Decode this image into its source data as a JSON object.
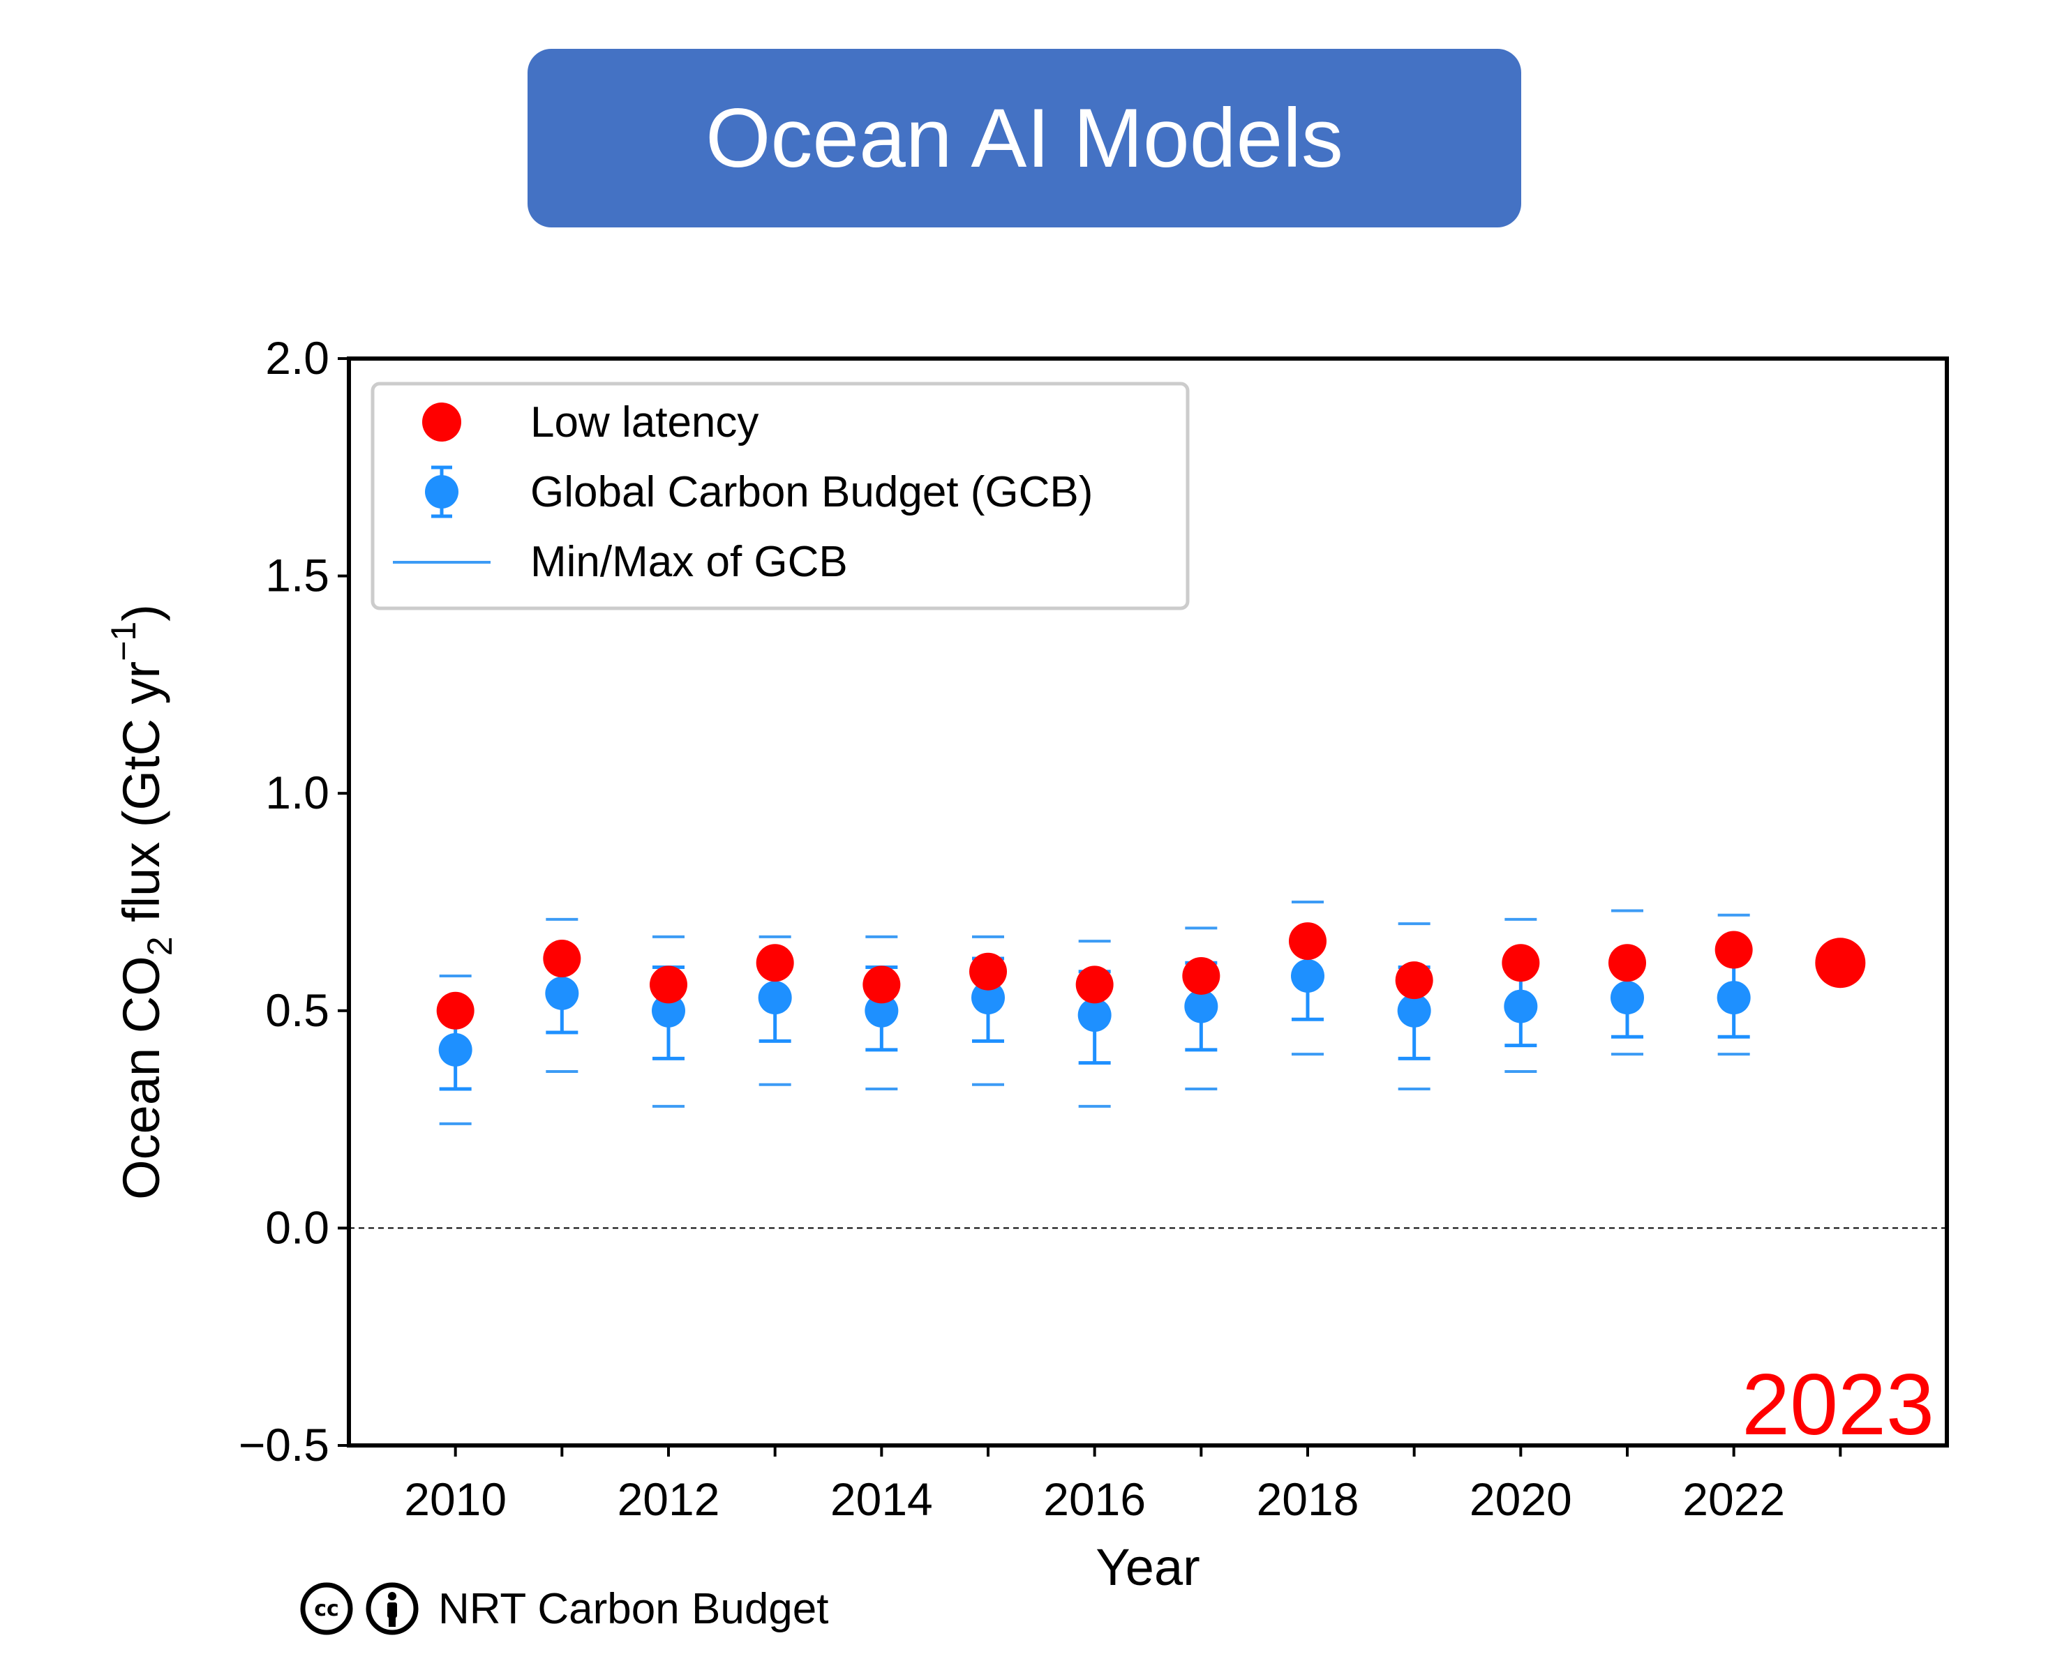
{
  "header": {
    "title": "Ocean AI Models"
  },
  "colors": {
    "title_bg": "#4472c4",
    "low_latency": "#ff0000",
    "gcb": "#1e90ff",
    "minmax": "#3c9bf5",
    "highlight_year": "#ff0000"
  },
  "chart_data": {
    "type": "scatter",
    "xlabel": "Year",
    "ylabel_parts": [
      "Ocean CO",
      "2",
      " flux (GtC yr",
      "−1",
      ")"
    ],
    "xlim": [
      2009,
      2024
    ],
    "ylim": [
      -0.5,
      2.0
    ],
    "xticks": [
      2010,
      2011,
      2012,
      2013,
      2014,
      2015,
      2016,
      2017,
      2018,
      2019,
      2020,
      2021,
      2022,
      2023
    ],
    "xtick_labels": [
      "2010",
      "",
      "2012",
      "",
      "2014",
      "",
      "2016",
      "",
      "2018",
      "",
      "2020",
      "",
      "2022",
      ""
    ],
    "yticks": [
      -0.5,
      0.0,
      0.5,
      1.0,
      1.5,
      2.0
    ],
    "ytick_labels": [
      "−0.5",
      "0.0",
      "0.5",
      "1.0",
      "1.5",
      "2.0"
    ],
    "zero_line": true,
    "highlight_label": "2023",
    "legend": {
      "position": "top-left",
      "entries": [
        "Low latency",
        "Global Carbon Budget (GCB)",
        "Min/Max of GCB"
      ]
    },
    "series": [
      {
        "name": "Low latency",
        "marker": "circle",
        "x": [
          2010,
          2011,
          2012,
          2013,
          2014,
          2015,
          2016,
          2017,
          2018,
          2019,
          2020,
          2021,
          2022,
          2023
        ],
        "y": [
          0.5,
          0.62,
          0.56,
          0.61,
          0.56,
          0.59,
          0.56,
          0.58,
          0.66,
          0.57,
          0.61,
          0.61,
          0.64,
          0.61
        ],
        "emphasized_last": true
      },
      {
        "name": "Global Carbon Budget (GCB)",
        "marker": "circle-errorbar",
        "x": [
          2010,
          2011,
          2012,
          2013,
          2014,
          2015,
          2016,
          2017,
          2018,
          2019,
          2020,
          2021,
          2022
        ],
        "y": [
          0.41,
          0.54,
          0.5,
          0.53,
          0.5,
          0.53,
          0.49,
          0.51,
          0.58,
          0.5,
          0.51,
          0.53,
          0.53
        ],
        "err_low": [
          0.32,
          0.45,
          0.39,
          0.43,
          0.41,
          0.43,
          0.38,
          0.41,
          0.48,
          0.39,
          0.42,
          0.44,
          0.44
        ],
        "err_high": [
          0.49,
          0.64,
          0.6,
          0.62,
          0.6,
          0.62,
          0.59,
          0.61,
          0.68,
          0.6,
          0.61,
          0.63,
          0.62
        ]
      },
      {
        "name": "Min/Max of GCB",
        "marker": "hline",
        "x": [
          2010,
          2011,
          2012,
          2013,
          2014,
          2015,
          2016,
          2017,
          2018,
          2019,
          2020,
          2021,
          2022
        ],
        "min": [
          0.24,
          0.36,
          0.28,
          0.33,
          0.32,
          0.33,
          0.28,
          0.32,
          0.4,
          0.32,
          0.36,
          0.4,
          0.4
        ],
        "max": [
          0.58,
          0.71,
          0.67,
          0.67,
          0.67,
          0.67,
          0.66,
          0.69,
          0.75,
          0.7,
          0.71,
          0.73,
          0.72
        ]
      }
    ]
  },
  "footer": {
    "credit": "NRT Carbon Budget",
    "icons": [
      "cc-icon",
      "attribution-icon"
    ]
  }
}
